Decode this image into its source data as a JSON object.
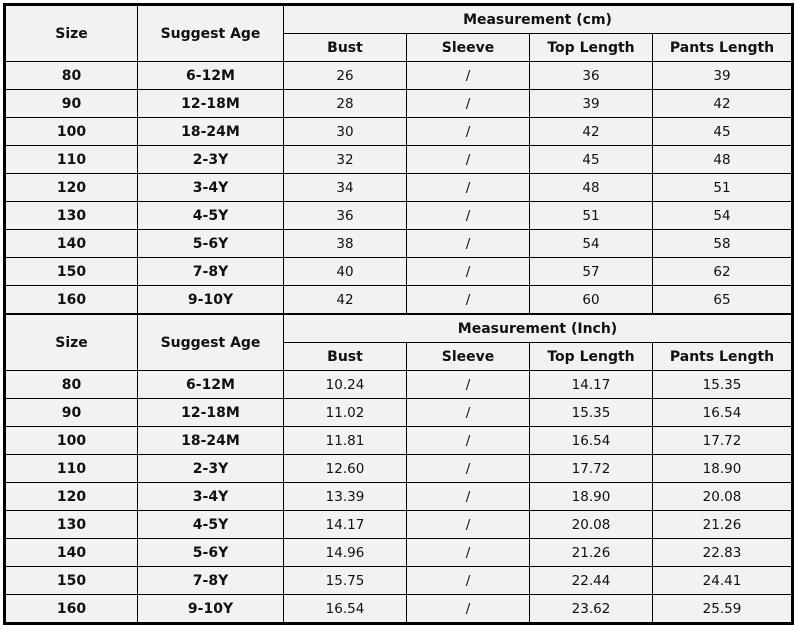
{
  "tables": [
    {
      "size_header": "Size",
      "age_header": "Suggest Age",
      "group_header": "Measurement (cm)",
      "columns": [
        "Bust",
        "Sleeve",
        "Top Length",
        "Pants Length"
      ],
      "rows": [
        [
          "80",
          "6-12M",
          "26",
          "/",
          "36",
          "39"
        ],
        [
          "90",
          "12-18M",
          "28",
          "/",
          "39",
          "42"
        ],
        [
          "100",
          "18-24M",
          "30",
          "/",
          "42",
          "45"
        ],
        [
          "110",
          "2-3Y",
          "32",
          "/",
          "45",
          "48"
        ],
        [
          "120",
          "3-4Y",
          "34",
          "/",
          "48",
          "51"
        ],
        [
          "130",
          "4-5Y",
          "36",
          "/",
          "51",
          "54"
        ],
        [
          "140",
          "5-6Y",
          "38",
          "/",
          "54",
          "58"
        ],
        [
          "150",
          "7-8Y",
          "40",
          "/",
          "57",
          "62"
        ],
        [
          "160",
          "9-10Y",
          "42",
          "/",
          "60",
          "65"
        ]
      ]
    },
    {
      "size_header": "Size",
      "age_header": "Suggest Age",
      "group_header": "Measurement (Inch)",
      "columns": [
        "Bust",
        "Sleeve",
        "Top Length",
        "Pants Length"
      ],
      "rows": [
        [
          "80",
          "6-12M",
          "10.24",
          "/",
          "14.17",
          "15.35"
        ],
        [
          "90",
          "12-18M",
          "11.02",
          "/",
          "15.35",
          "16.54"
        ],
        [
          "100",
          "18-24M",
          "11.81",
          "/",
          "16.54",
          "17.72"
        ],
        [
          "110",
          "2-3Y",
          "12.60",
          "/",
          "17.72",
          "18.90"
        ],
        [
          "120",
          "3-4Y",
          "13.39",
          "/",
          "18.90",
          "20.08"
        ],
        [
          "130",
          "4-5Y",
          "14.17",
          "/",
          "20.08",
          "21.26"
        ],
        [
          "140",
          "5-6Y",
          "14.96",
          "/",
          "21.26",
          "22.83"
        ],
        [
          "150",
          "7-8Y",
          "15.75",
          "/",
          "22.44",
          "24.41"
        ],
        [
          "160",
          "9-10Y",
          "16.54",
          "/",
          "23.62",
          "25.59"
        ]
      ]
    }
  ]
}
